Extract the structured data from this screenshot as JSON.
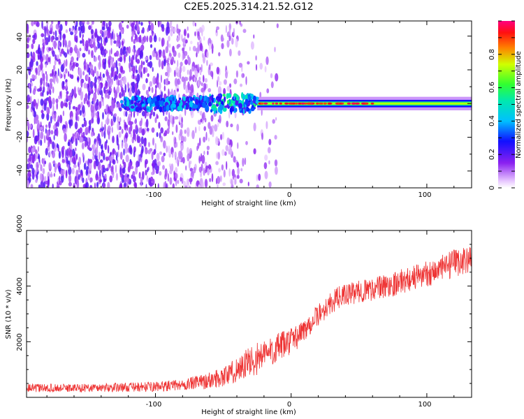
{
  "title": "C2E5.2025.314.21.52.G12",
  "chart_data": [
    {
      "type": "heatmap",
      "title": "C2E5.2025.314.21.52.G12",
      "xlabel": "Height of straight line (km)",
      "ylabel": "Frequency (Hz)",
      "xlim": [
        -195,
        133
      ],
      "ylim": [
        -50,
        49
      ],
      "xticks": [
        -100,
        0,
        100
      ],
      "yticks": [
        -40,
        -20,
        0,
        20,
        40
      ],
      "colorbar": {
        "label": "Normalized spectral amplitude",
        "range": [
          0.0,
          1.0
        ],
        "ticks": [
          0.0,
          0.2,
          0.4,
          0.6,
          0.8
        ],
        "colormap": "rainbow (magenta-purple-blue-cyan-green-yellow-red)"
      },
      "features": {
        "noise_region_km": [
          -195,
          -25
        ],
        "coherent_tone_start_km": -25,
        "tone_frequency_hz": 0,
        "strongest_segment_km": [
          -25,
          60
        ]
      }
    },
    {
      "type": "line",
      "xlabel": "Height of straight line (km)",
      "ylabel": "SNR (10 * v/v)",
      "xlim": [
        -195,
        133
      ],
      "ylim": [
        0,
        6000
      ],
      "xticks": [
        -100,
        0,
        100
      ],
      "yticks": [
        2000,
        4000,
        6000
      ],
      "color": "#ee3333",
      "series": [
        {
          "name": "SNR",
          "x": [
            -195,
            -150,
            -100,
            -80,
            -60,
            -45,
            -35,
            -25,
            -15,
            -5,
            5,
            15,
            25,
            35,
            50,
            70,
            90,
            110,
            125,
            133
          ],
          "mean": [
            330,
            340,
            380,
            450,
            600,
            850,
            1150,
            1400,
            1650,
            1900,
            2200,
            2700,
            3200,
            3600,
            3800,
            4000,
            4300,
            4600,
            4900,
            5000
          ],
          "spread": [
            150,
            150,
            180,
            200,
            300,
            400,
            550,
            600,
            550,
            500,
            450,
            400,
            400,
            400,
            400,
            450,
            450,
            500,
            500,
            500
          ]
        }
      ]
    }
  ]
}
